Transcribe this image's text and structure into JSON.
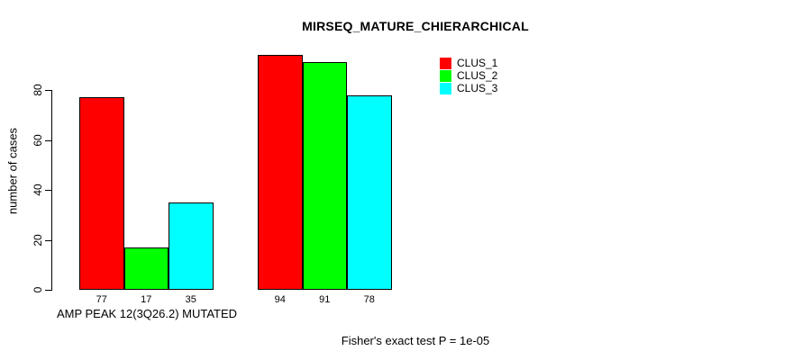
{
  "chart_data": {
    "type": "bar",
    "title": "MIRSEQ_MATURE_CHIERARCHICAL",
    "ylabel": "number of cases",
    "xlabel": "AMP PEAK 12(3Q26.2) MUTATED",
    "annotation": "Fisher's exact test P = 1e-05",
    "categories": [
      "AMP PEAK 12(3Q26.2) MUTATED",
      ""
    ],
    "series": [
      {
        "name": "CLUS_1",
        "color": "#ff0000",
        "values": [
          77,
          94
        ]
      },
      {
        "name": "CLUS_2",
        "color": "#00ff00",
        "values": [
          17,
          91
        ]
      },
      {
        "name": "CLUS_3",
        "color": "#00ffff",
        "values": [
          35,
          78
        ]
      }
    ],
    "bar_value_labels": [
      [
        "77",
        "17",
        "35"
      ],
      [
        "94",
        "91",
        "78"
      ]
    ],
    "yticks": [
      0,
      20,
      40,
      60,
      80
    ],
    "ylim": [
      0,
      95.5
    ],
    "grid": false,
    "legend_position": "top-right",
    "bar_border_color": "#000000",
    "background_color": "#ffffff"
  }
}
